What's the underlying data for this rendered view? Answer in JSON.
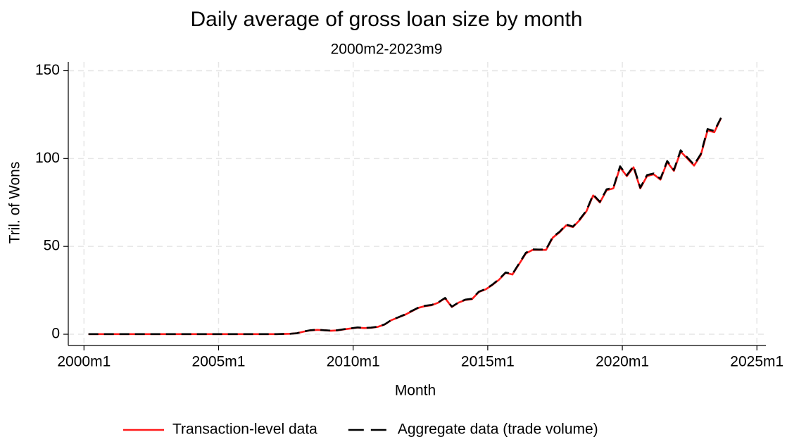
{
  "chart_data": {
    "type": "line",
    "title": "Daily average of gross loan size by month",
    "subtitle": "2000m2-2023m9",
    "x_label": "Month",
    "y_label": "Tril. of Wons",
    "x": [
      "2000m3",
      "2000m6",
      "2000m9",
      "2000m12",
      "2001m3",
      "2001m6",
      "2001m9",
      "2001m12",
      "2002m3",
      "2002m6",
      "2002m9",
      "2002m12",
      "2003m3",
      "2003m6",
      "2003m9",
      "2003m12",
      "2004m3",
      "2004m6",
      "2004m9",
      "2004m12",
      "2005m3",
      "2005m6",
      "2005m9",
      "2005m12",
      "2006m3",
      "2006m6",
      "2006m9",
      "2006m12",
      "2007m3",
      "2007m6",
      "2007m9",
      "2007m12",
      "2008m3",
      "2008m6",
      "2008m9",
      "2008m12",
      "2009m3",
      "2009m6",
      "2009m9",
      "2009m12",
      "2010m3",
      "2010m6",
      "2010m9",
      "2010m12",
      "2011m3",
      "2011m6",
      "2011m9",
      "2011m12",
      "2012m3",
      "2012m6",
      "2012m9",
      "2012m12",
      "2013m3",
      "2013m6",
      "2013m9",
      "2013m12",
      "2014m3",
      "2014m6",
      "2014m9",
      "2014m12",
      "2015m3",
      "2015m6",
      "2015m9",
      "2015m12",
      "2016m3",
      "2016m6",
      "2016m9",
      "2016m12",
      "2017m3",
      "2017m6",
      "2017m9",
      "2017m12",
      "2018m3",
      "2018m6",
      "2018m9",
      "2018m12",
      "2019m3",
      "2019m6",
      "2019m9",
      "2019m12",
      "2020m3",
      "2020m6",
      "2020m9",
      "2020m12",
      "2021m3",
      "2021m6",
      "2021m9",
      "2021m12",
      "2022m3",
      "2022m6",
      "2022m9",
      "2022m12",
      "2023m3",
      "2023m6",
      "2023m9"
    ],
    "series": [
      {
        "name": "Transaction-level data",
        "color": "#ff1a1a",
        "dash": false,
        "values": [
          0.1,
          0.1,
          0.1,
          0.1,
          0.1,
          0.1,
          0.1,
          0.1,
          0.1,
          0.1,
          0.1,
          0.1,
          0.1,
          0.1,
          0.1,
          0.1,
          0.1,
          0.1,
          0.1,
          0.1,
          0.1,
          0.1,
          0.1,
          0.1,
          0.1,
          0.1,
          0.1,
          0.1,
          0.1,
          0.2,
          0.3,
          0.6,
          1.5,
          2.2,
          2.5,
          2.3,
          2.0,
          2.2,
          2.8,
          3.3,
          3.8,
          3.5,
          3.7,
          4.2,
          5.5,
          8,
          9.5,
          11,
          13,
          15,
          16,
          16.5,
          18,
          20.5,
          15.5,
          18,
          19.5,
          20,
          24,
          25.5,
          28,
          31,
          35,
          34,
          40,
          46,
          48,
          48,
          48,
          55,
          58,
          62,
          61,
          65,
          70,
          79,
          75,
          82,
          83,
          95,
          90,
          95,
          83,
          90,
          91,
          88,
          98,
          93,
          104,
          100,
          96,
          102,
          116,
          115,
          123
        ]
      },
      {
        "name": "Aggregate data (trade volume)",
        "color": "#000000",
        "dash": true,
        "values": [
          0.1,
          0.1,
          0.1,
          0.1,
          0.1,
          0.1,
          0.1,
          0.1,
          0.1,
          0.1,
          0.1,
          0.1,
          0.1,
          0.1,
          0.1,
          0.1,
          0.1,
          0.1,
          0.1,
          0.1,
          0.1,
          0.1,
          0.1,
          0.1,
          0.1,
          0.1,
          0.1,
          0.1,
          0.1,
          0.2,
          0.3,
          0.6,
          1.6,
          2.3,
          2.6,
          2.3,
          2.1,
          2.3,
          2.9,
          3.4,
          3.9,
          3.6,
          3.8,
          4.3,
          5.6,
          8.1,
          9.6,
          11.2,
          13.2,
          15.1,
          16.2,
          16.7,
          18.2,
          20.7,
          15.7,
          18.1,
          19.7,
          20.2,
          24.2,
          25.7,
          28.2,
          31.3,
          35.2,
          34.3,
          40.3,
          46.4,
          48.3,
          48.2,
          48.3,
          55.4,
          58.3,
          62.5,
          61.3,
          65.4,
          70.4,
          79.5,
          75.4,
          82.5,
          83.4,
          95.6,
          90.5,
          95.7,
          83.4,
          90.6,
          91.5,
          88.5,
          98.6,
          93.5,
          104.7,
          100.6,
          96.5,
          102.6,
          116.8,
          115.7,
          123.2
        ]
      }
    ],
    "xlim": [
      "1999m6",
      "2025m5"
    ],
    "xticks": [
      "2000m1",
      "2005m1",
      "2010m1",
      "2015m1",
      "2020m1",
      "2025m1"
    ],
    "ylim": [
      -6.4,
      155
    ],
    "yticks": [
      0,
      50,
      100,
      150
    ],
    "grid": true,
    "legend": "bottom"
  }
}
